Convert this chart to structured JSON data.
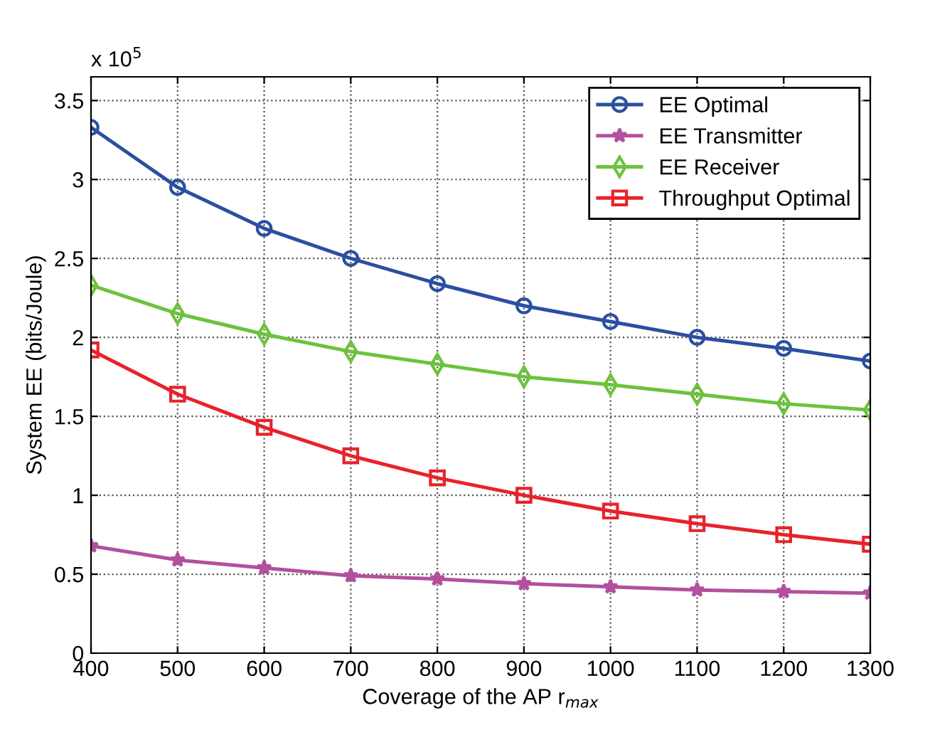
{
  "chart_data": {
    "type": "line",
    "xlabel": "Coverage of the AP r$_{max}$",
    "ylabel": "System EE (bits/Joule)",
    "annotations": [
      "x 10$^{5}$"
    ],
    "x": [
      400,
      500,
      600,
      700,
      800,
      900,
      1000,
      1100,
      1200,
      1300
    ],
    "series": [
      {
        "name": "EE Optimal",
        "color": "#2b4fa0",
        "marker": "circle",
        "values": [
          3.33,
          2.95,
          2.69,
          2.5,
          2.34,
          2.2,
          2.1,
          2.0,
          1.93,
          1.85
        ]
      },
      {
        "name": "EE Transmitter",
        "color": "#b2509e",
        "marker": "star",
        "values": [
          0.68,
          0.59,
          0.54,
          0.49,
          0.47,
          0.44,
          0.42,
          0.4,
          0.39,
          0.38
        ]
      },
      {
        "name": "EE Receiver",
        "color": "#6cc23c",
        "marker": "diamond",
        "values": [
          2.33,
          2.15,
          2.02,
          1.91,
          1.83,
          1.75,
          1.7,
          1.64,
          1.58,
          1.54
        ]
      },
      {
        "name": "Throughput Optimal",
        "color": "#e8222a",
        "marker": "square",
        "values": [
          1.92,
          1.64,
          1.43,
          1.25,
          1.11,
          1.0,
          0.9,
          0.82,
          0.75,
          0.69
        ]
      }
    ],
    "xlim": [
      400,
      1300
    ],
    "xticks": [
      400,
      500,
      600,
      700,
      800,
      900,
      1000,
      1100,
      1200,
      1300
    ],
    "ylim": [
      0,
      3.65
    ],
    "yticks": [
      0,
      0.5,
      1,
      1.5,
      2,
      2.5,
      3,
      3.5
    ],
    "grid": true,
    "legend": "top right",
    "line_style": "solid"
  }
}
